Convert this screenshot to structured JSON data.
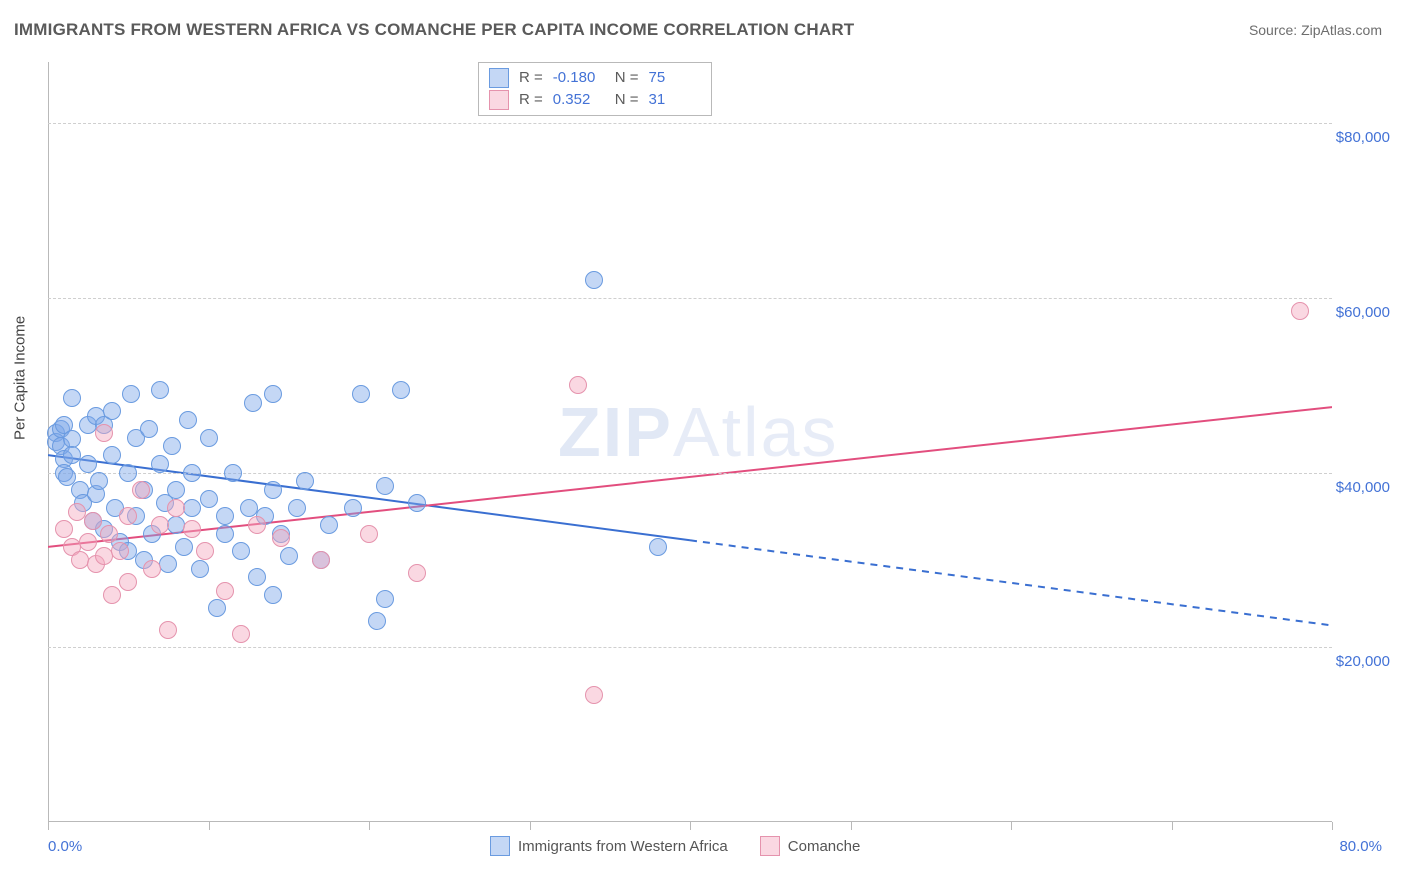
{
  "title": "IMMIGRANTS FROM WESTERN AFRICA VS COMANCHE PER CAPITA INCOME CORRELATION CHART",
  "source_label": "Source: ZipAtlas.com",
  "watermark": {
    "zip": "ZIP",
    "atlas": "Atlas"
  },
  "y_axis_title": "Per Capita Income",
  "chart": {
    "type": "scatter",
    "xlim": [
      0,
      80
    ],
    "ylim": [
      0,
      87000
    ],
    "x_axis_format": "percent",
    "y_axis_format": "currency",
    "x_tick_labels": {
      "left": "0.0%",
      "right": "80.0%"
    },
    "x_tick_positions": [
      0,
      10,
      20,
      30,
      40,
      50,
      60,
      70,
      80
    ],
    "y_gridlines": [
      20000,
      40000,
      60000,
      80000
    ],
    "y_tick_labels": [
      "$20,000",
      "$40,000",
      "$60,000",
      "$80,000"
    ],
    "background_color": "#ffffff",
    "grid_color": "#cfcfcf",
    "axis_color": "#b9b9b9",
    "axis_label_color": "#4372d6",
    "marker_radius": 9,
    "series": [
      {
        "id": "A",
        "label": "Immigrants from Western Africa",
        "R": "-0.180",
        "N": "75",
        "fill": "rgba(124,166,232,0.45)",
        "stroke": "#6a9be0",
        "line_color": "#3a6fd1",
        "line_width": 2,
        "regression": {
          "y_at_x0": 42000,
          "y_at_xmax": 22500,
          "solid_until_x": 40
        },
        "points": [
          [
            0.5,
            44500
          ],
          [
            0.5,
            43500
          ],
          [
            0.8,
            45000
          ],
          [
            0.8,
            43000
          ],
          [
            1,
            41500
          ],
          [
            1,
            40000
          ],
          [
            1,
            45500
          ],
          [
            1.2,
            39500
          ],
          [
            1.5,
            43800
          ],
          [
            1.5,
            42000
          ],
          [
            1.5,
            48500
          ],
          [
            2,
            38000
          ],
          [
            2.2,
            36500
          ],
          [
            2.5,
            41000
          ],
          [
            2.5,
            45500
          ],
          [
            2.8,
            34500
          ],
          [
            3,
            46500
          ],
          [
            3,
            37500
          ],
          [
            3.2,
            39000
          ],
          [
            3.5,
            33500
          ],
          [
            3.5,
            45500
          ],
          [
            4,
            42000
          ],
          [
            4,
            47000
          ],
          [
            4.2,
            36000
          ],
          [
            4.5,
            32000
          ],
          [
            5,
            40000
          ],
          [
            5,
            31000
          ],
          [
            5.2,
            49000
          ],
          [
            5.5,
            35000
          ],
          [
            5.5,
            44000
          ],
          [
            6,
            38000
          ],
          [
            6,
            30000
          ],
          [
            6.3,
            45000
          ],
          [
            6.5,
            33000
          ],
          [
            7,
            49500
          ],
          [
            7,
            41000
          ],
          [
            7.3,
            36500
          ],
          [
            7.5,
            29500
          ],
          [
            7.7,
            43000
          ],
          [
            8,
            38000
          ],
          [
            8,
            34000
          ],
          [
            8.5,
            31500
          ],
          [
            8.7,
            46000
          ],
          [
            9,
            40000
          ],
          [
            9,
            36000
          ],
          [
            9.5,
            29000
          ],
          [
            10,
            44000
          ],
          [
            10,
            37000
          ],
          [
            10.5,
            24500
          ],
          [
            11,
            35000
          ],
          [
            11,
            33000
          ],
          [
            11.5,
            40000
          ],
          [
            12,
            31000
          ],
          [
            12.5,
            36000
          ],
          [
            12.8,
            48000
          ],
          [
            13,
            28000
          ],
          [
            13.5,
            35000
          ],
          [
            14,
            38000
          ],
          [
            14,
            49000
          ],
          [
            14,
            26000
          ],
          [
            14.5,
            33000
          ],
          [
            15,
            30500
          ],
          [
            15.5,
            36000
          ],
          [
            16,
            39000
          ],
          [
            17,
            30000
          ],
          [
            17.5,
            34000
          ],
          [
            19,
            36000
          ],
          [
            19.5,
            49000
          ],
          [
            20.5,
            23000
          ],
          [
            21,
            38500
          ],
          [
            21,
            25500
          ],
          [
            22,
            49500
          ],
          [
            23,
            36500
          ],
          [
            34,
            62000
          ],
          [
            38,
            31500
          ]
        ]
      },
      {
        "id": "B",
        "label": "Comanche",
        "R": "0.352",
        "N": "31",
        "fill": "rgba(244,168,190,0.45)",
        "stroke": "#e593ad",
        "line_color": "#e24e7e",
        "line_width": 2,
        "regression": {
          "y_at_x0": 31500,
          "y_at_xmax": 47500,
          "solid_until_x": 80
        },
        "points": [
          [
            1,
            33500
          ],
          [
            1.5,
            31500
          ],
          [
            1.8,
            35500
          ],
          [
            2,
            30000
          ],
          [
            2.5,
            32000
          ],
          [
            2.8,
            34500
          ],
          [
            3,
            29500
          ],
          [
            3.5,
            30500
          ],
          [
            3.5,
            44500
          ],
          [
            3.8,
            33000
          ],
          [
            4,
            26000
          ],
          [
            4.5,
            31000
          ],
          [
            5,
            35000
          ],
          [
            5,
            27500
          ],
          [
            5.8,
            38000
          ],
          [
            6.5,
            29000
          ],
          [
            7,
            34000
          ],
          [
            7.5,
            22000
          ],
          [
            8,
            36000
          ],
          [
            9,
            33500
          ],
          [
            9.8,
            31000
          ],
          [
            11,
            26500
          ],
          [
            12,
            21500
          ],
          [
            13,
            34000
          ],
          [
            14.5,
            32500
          ],
          [
            17,
            30000
          ],
          [
            20,
            33000
          ],
          [
            23,
            28500
          ],
          [
            33,
            50000
          ],
          [
            34,
            14500
          ],
          [
            78,
            58500
          ]
        ]
      }
    ]
  },
  "legend_top": {
    "rows": [
      {
        "swatch": "A",
        "r_label": "R = ",
        "r_value": "-0.180",
        "n_label": "N = ",
        "n_value": "75"
      },
      {
        "swatch": "B",
        "r_label": "R = ",
        "r_value": "0.352",
        "n_label": "N = ",
        "n_value": "31"
      }
    ]
  },
  "legend_bottom": {
    "items": [
      {
        "swatch": "A",
        "label": "Immigrants from Western Africa"
      },
      {
        "swatch": "B",
        "label": "Comanche"
      }
    ]
  }
}
